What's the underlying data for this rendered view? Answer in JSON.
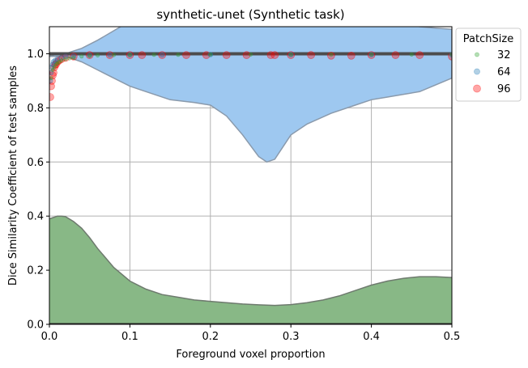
{
  "chart_data": {
    "type": "scatter",
    "title": "synthetic-unet (Synthetic task)",
    "xlabel": "Foreground voxel proportion",
    "ylabel": "Dice Similarity Coefficient of test samples",
    "xlim": [
      0,
      0.5
    ],
    "ylim": [
      0,
      1.1
    ],
    "x_ticks": [
      0,
      0.1,
      0.2,
      0.3,
      0.4,
      0.5
    ],
    "x_tick_labels": [
      "0.0",
      "0.1",
      "0.2",
      "0.3",
      "0.4",
      "0.5"
    ],
    "y_ticks": [
      0,
      0.2,
      0.4,
      0.6,
      0.8,
      1.0
    ],
    "y_tick_labels": [
      "0.0",
      "0.2",
      "0.4",
      "0.6",
      "0.8",
      "1.0"
    ],
    "grid": true,
    "legend": {
      "title": "PatchSize",
      "placement": "outside-top-right",
      "entries": [
        {
          "label": "32",
          "color": "#2ca02c"
        },
        {
          "label": "64",
          "color": "#1f77b4"
        },
        {
          "label": "96",
          "color": "#ff0000"
        }
      ]
    },
    "reference_line": {
      "y": 1.0,
      "color": "#4d4d4d"
    },
    "dsc_density_band": {
      "color": "#9ec8f0",
      "edge_color": "#8a9aac",
      "x": [
        0,
        0.01,
        0.02,
        0.03,
        0.04,
        0.06,
        0.08,
        0.1,
        0.12,
        0.15,
        0.18,
        0.2,
        0.22,
        0.24,
        0.26,
        0.27,
        0.28,
        0.3,
        0.32,
        0.35,
        0.38,
        0.4,
        0.42,
        0.44,
        0.46,
        0.48,
        0.5
      ],
      "lower": [
        0.99,
        0.99,
        0.99,
        0.98,
        0.97,
        0.94,
        0.91,
        0.88,
        0.86,
        0.83,
        0.82,
        0.81,
        0.77,
        0.7,
        0.62,
        0.6,
        0.61,
        0.7,
        0.74,
        0.78,
        0.81,
        0.83,
        0.84,
        0.85,
        0.86,
        0.885,
        0.91
      ],
      "upper": [
        0.99,
        1.0,
        1.0,
        1.01,
        1.02,
        1.05,
        1.085,
        1.12,
        1.15,
        1.18,
        1.2,
        1.21,
        1.2,
        1.19,
        1.18,
        1.18,
        1.18,
        1.17,
        1.16,
        1.15,
        1.14,
        1.13,
        1.12,
        1.11,
        1.1,
        1.095,
        1.09
      ]
    },
    "foreground_density": {
      "color": "#88b886",
      "edge_color": "#6e7a6e",
      "x": [
        0,
        0.005,
        0.01,
        0.015,
        0.02,
        0.03,
        0.04,
        0.05,
        0.06,
        0.08,
        0.1,
        0.12,
        0.14,
        0.16,
        0.18,
        0.2,
        0.22,
        0.24,
        0.26,
        0.28,
        0.3,
        0.32,
        0.34,
        0.36,
        0.38,
        0.4,
        0.42,
        0.44,
        0.46,
        0.48,
        0.5
      ],
      "y": [
        0.39,
        0.395,
        0.4,
        0.4,
        0.398,
        0.38,
        0.355,
        0.32,
        0.28,
        0.21,
        0.16,
        0.13,
        0.11,
        0.1,
        0.09,
        0.085,
        0.08,
        0.075,
        0.072,
        0.07,
        0.073,
        0.08,
        0.09,
        0.105,
        0.125,
        0.145,
        0.16,
        0.17,
        0.176,
        0.176,
        0.173
      ]
    },
    "series": [
      {
        "name": "96",
        "color": "#ff0000",
        "marker_size": "large",
        "points": [
          [
            0.001,
            0.84
          ],
          [
            0.002,
            0.88
          ],
          [
            0.003,
            0.9
          ],
          [
            0.004,
            0.92
          ],
          [
            0.005,
            0.93
          ],
          [
            0.006,
            0.95
          ],
          [
            0.007,
            0.96
          ],
          [
            0.008,
            0.96
          ],
          [
            0.01,
            0.97
          ],
          [
            0.012,
            0.975
          ],
          [
            0.015,
            0.98
          ],
          [
            0.02,
            0.985
          ],
          [
            0.03,
            0.99
          ],
          [
            0.05,
            0.995
          ],
          [
            0.075,
            0.995
          ],
          [
            0.1,
            0.995
          ],
          [
            0.115,
            0.995
          ],
          [
            0.14,
            0.995
          ],
          [
            0.17,
            0.995
          ],
          [
            0.195,
            0.995
          ],
          [
            0.22,
            0.995
          ],
          [
            0.245,
            0.995
          ],
          [
            0.275,
            0.995
          ],
          [
            0.28,
            0.995
          ],
          [
            0.3,
            0.995
          ],
          [
            0.325,
            0.995
          ],
          [
            0.35,
            0.993
          ],
          [
            0.375,
            0.993
          ],
          [
            0.4,
            0.995
          ],
          [
            0.43,
            0.995
          ],
          [
            0.46,
            0.995
          ],
          [
            0.5,
            0.99
          ]
        ]
      },
      {
        "name": "64",
        "color": "#1f77b4",
        "marker_size": "medium",
        "points": [
          [
            0.001,
            0.9
          ],
          [
            0.002,
            0.93
          ],
          [
            0.003,
            0.95
          ],
          [
            0.004,
            0.96
          ],
          [
            0.005,
            0.97
          ],
          [
            0.007,
            0.975
          ],
          [
            0.01,
            0.98
          ],
          [
            0.015,
            0.985
          ],
          [
            0.02,
            0.99
          ],
          [
            0.03,
            0.992
          ],
          [
            0.05,
            0.995
          ],
          [
            0.075,
            0.996
          ],
          [
            0.1,
            0.996
          ],
          [
            0.14,
            0.996
          ],
          [
            0.2,
            0.997
          ],
          [
            0.3,
            0.997
          ],
          [
            0.4,
            0.997
          ],
          [
            0.5,
            0.996
          ]
        ]
      },
      {
        "name": "32",
        "color": "#2ca02c",
        "marker_size": "small",
        "points": [
          [
            0.002,
            0.91
          ],
          [
            0.004,
            0.94
          ],
          [
            0.006,
            0.95
          ],
          [
            0.008,
            0.96
          ],
          [
            0.01,
            0.965
          ],
          [
            0.012,
            0.97
          ],
          [
            0.015,
            0.975
          ],
          [
            0.02,
            0.98
          ],
          [
            0.025,
            0.983
          ],
          [
            0.03,
            0.985
          ],
          [
            0.04,
            0.99
          ],
          [
            0.05,
            0.992
          ],
          [
            0.06,
            0.994
          ],
          [
            0.08,
            0.995
          ],
          [
            0.1,
            0.996
          ],
          [
            0.13,
            0.996
          ],
          [
            0.16,
            0.996
          ],
          [
            0.2,
            0.997
          ],
          [
            0.25,
            0.997
          ],
          [
            0.3,
            0.997
          ],
          [
            0.35,
            0.997
          ],
          [
            0.4,
            0.997
          ],
          [
            0.45,
            0.997
          ],
          [
            0.5,
            0.997
          ]
        ]
      }
    ]
  }
}
